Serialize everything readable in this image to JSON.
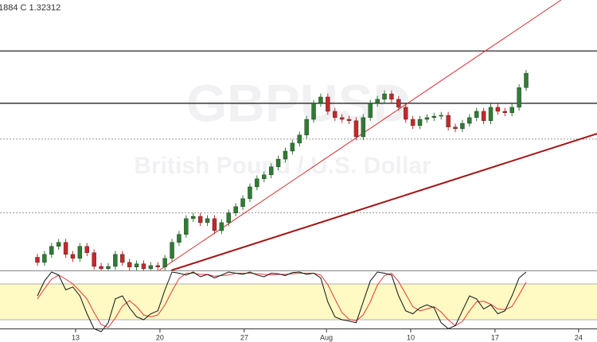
{
  "chart_data": [
    {
      "type": "candlestick",
      "header": "1884  C 1.32312",
      "watermark": "GBPUSD",
      "watermark_subtitle": "British Pound / U.S. Dollar",
      "up_color": "#2e7d32",
      "down_color": "#c62828",
      "xlim": [
        -5.28,
        79
      ],
      "ylim": [
        1.2542,
        1.3487
      ],
      "open": [
        1.2588,
        1.257,
        1.2598,
        1.2626,
        1.264,
        1.2598,
        1.2584,
        1.2626,
        1.2604,
        1.2556,
        1.2548,
        1.2556,
        1.2598,
        1.257,
        1.2554,
        1.2565,
        1.2548,
        1.2559,
        1.2554,
        1.2584,
        1.264,
        1.2668,
        1.2723,
        1.2731,
        1.2709,
        1.2723,
        1.2681,
        1.2709,
        1.2743,
        1.2765,
        1.2793,
        1.2834,
        1.2862,
        1.2876,
        1.2904,
        1.2931,
        1.2959,
        1.2987,
        1.3015,
        1.307,
        1.3126,
        1.3148,
        1.3098,
        1.3076,
        1.307,
        1.3065,
        1.3009,
        1.3076,
        1.3126,
        1.314,
        1.3159,
        1.314,
        1.3112,
        1.307,
        1.3048,
        1.307,
        1.3076,
        1.3081,
        1.3084,
        1.3043,
        1.3037,
        1.3056,
        1.3076,
        1.3098,
        1.3065,
        1.3112,
        1.3098,
        1.3093,
        1.3112,
        1.3181
      ],
      "high": [
        1.26,
        1.261,
        1.2638,
        1.2652,
        1.2652,
        1.261,
        1.2638,
        1.2638,
        1.2616,
        1.2568,
        1.2568,
        1.261,
        1.261,
        1.2582,
        1.2577,
        1.2577,
        1.2571,
        1.2571,
        1.2596,
        1.2652,
        1.268,
        1.2735,
        1.2743,
        1.2743,
        1.2735,
        1.2735,
        1.2721,
        1.2755,
        1.2777,
        1.2805,
        1.2846,
        1.2874,
        1.2888,
        1.2916,
        1.2943,
        1.2971,
        1.2999,
        1.3027,
        1.3082,
        1.3138,
        1.316,
        1.316,
        1.311,
        1.3088,
        1.3082,
        1.3077,
        1.3088,
        1.3138,
        1.3152,
        1.3171,
        1.3171,
        1.3152,
        1.3124,
        1.3082,
        1.3082,
        1.3088,
        1.3093,
        1.3096,
        1.3096,
        1.3055,
        1.3068,
        1.3088,
        1.311,
        1.311,
        1.3124,
        1.3124,
        1.311,
        1.3124,
        1.3193,
        1.3243
      ],
      "low": [
        1.2558,
        1.2558,
        1.2586,
        1.2614,
        1.2586,
        1.2572,
        1.2572,
        1.2592,
        1.2544,
        1.2536,
        1.2536,
        1.2544,
        1.2558,
        1.2542,
        1.2542,
        1.2536,
        1.2536,
        1.2542,
        1.2542,
        1.2572,
        1.2628,
        1.2656,
        1.2711,
        1.2697,
        1.2697,
        1.2669,
        1.2669,
        1.2697,
        1.2731,
        1.2753,
        1.2781,
        1.2822,
        1.285,
        1.2864,
        1.2892,
        1.2919,
        1.2947,
        1.2975,
        1.3003,
        1.3058,
        1.3114,
        1.3086,
        1.3064,
        1.3058,
        1.3053,
        1.2997,
        1.2997,
        1.3064,
        1.3114,
        1.3128,
        1.3128,
        1.31,
        1.3058,
        1.3036,
        1.3036,
        1.3058,
        1.3064,
        1.3069,
        1.3031,
        1.3025,
        1.3025,
        1.3044,
        1.3064,
        1.3053,
        1.3053,
        1.3086,
        1.3081,
        1.3081,
        1.31,
        1.3169
      ],
      "close": [
        1.257,
        1.2598,
        1.2626,
        1.264,
        1.2598,
        1.2584,
        1.2626,
        1.2604,
        1.2556,
        1.2548,
        1.2556,
        1.2598,
        1.257,
        1.2554,
        1.2565,
        1.2548,
        1.2559,
        1.2554,
        1.2584,
        1.264,
        1.2668,
        1.2723,
        1.2731,
        1.2709,
        1.2723,
        1.2681,
        1.2709,
        1.2743,
        1.2765,
        1.2793,
        1.2834,
        1.2862,
        1.2876,
        1.2904,
        1.2931,
        1.2959,
        1.2987,
        1.3015,
        1.307,
        1.3126,
        1.3148,
        1.3098,
        1.3076,
        1.307,
        1.3065,
        1.3009,
        1.3076,
        1.3126,
        1.314,
        1.3159,
        1.314,
        1.3112,
        1.307,
        1.3048,
        1.307,
        1.3076,
        1.3081,
        1.3084,
        1.3043,
        1.3037,
        1.3056,
        1.3076,
        1.3098,
        1.3065,
        1.3112,
        1.3098,
        1.3093,
        1.3112,
        1.3181,
        1.3231
      ],
      "levels": [
        {
          "value": 1.3309,
          "style": "solid"
        },
        {
          "value": 1.3126,
          "style": "solid"
        },
        {
          "value": 1.3001,
          "style": "dotted"
        },
        {
          "value": 1.2743,
          "style": "dotted"
        }
      ],
      "trendlines": [
        {
          "x": [
            17.19,
            73.93
          ],
          "y": [
            1.2542,
            1.3487
          ],
          "color": "#d32f2f",
          "width": 1
        },
        {
          "x": [
            18.88,
            79
          ],
          "y": [
            1.2542,
            1.302
          ],
          "color": "#a31515",
          "width": 2
        }
      ]
    },
    {
      "type": "line",
      "xlim": [
        -5.28,
        79
      ],
      "ylim": [
        0,
        100
      ],
      "band": [
        20,
        80
      ],
      "band_color": "#fff9c4",
      "xticks": [
        {
          "value": 5.39,
          "label": "13"
        },
        {
          "value": 17.3,
          "label": "20"
        },
        {
          "value": 29.2,
          "label": "27"
        },
        {
          "value": 40.8,
          "label": "Aug"
        },
        {
          "value": 52.7,
          "label": "10"
        },
        {
          "value": 64.6,
          "label": "17"
        },
        {
          "value": 76.4,
          "label": "24"
        }
      ],
      "series": [
        {
          "color": "#111111",
          "values": [
            60,
            85,
            100,
            95,
            70,
            75,
            60,
            30,
            5,
            0,
            15,
            55,
            60,
            40,
            25,
            20,
            30,
            35,
            70,
            100,
            98,
            95,
            100,
            92,
            96,
            90,
            95,
            100,
            98,
            96,
            100,
            95,
            92,
            98,
            97,
            94,
            99,
            100,
            96,
            98,
            90,
            50,
            25,
            20,
            18,
            15,
            50,
            85,
            100,
            98,
            95,
            60,
            35,
            30,
            40,
            45,
            40,
            15,
            5,
            10,
            35,
            60,
            55,
            38,
            45,
            30,
            35,
            60,
            90,
            100
          ]
        },
        {
          "color": "#e53935",
          "values": [
            55,
            72,
            88,
            95,
            88,
            80,
            68,
            55,
            32,
            12,
            7,
            23,
            43,
            52,
            42,
            28,
            25,
            28,
            45,
            68,
            89,
            98,
            98,
            96,
            96,
            93,
            94,
            95,
            98,
            98,
            98,
            97,
            96,
            95,
            96,
            96,
            97,
            98,
            98,
            98,
            95,
            79,
            55,
            32,
            21,
            18,
            28,
            50,
            78,
            94,
            98,
            84,
            63,
            42,
            35,
            38,
            42,
            33,
            20,
            10,
            17,
            35,
            50,
            51,
            46,
            38,
            37,
            42,
            62,
            83
          ]
        }
      ]
    }
  ]
}
